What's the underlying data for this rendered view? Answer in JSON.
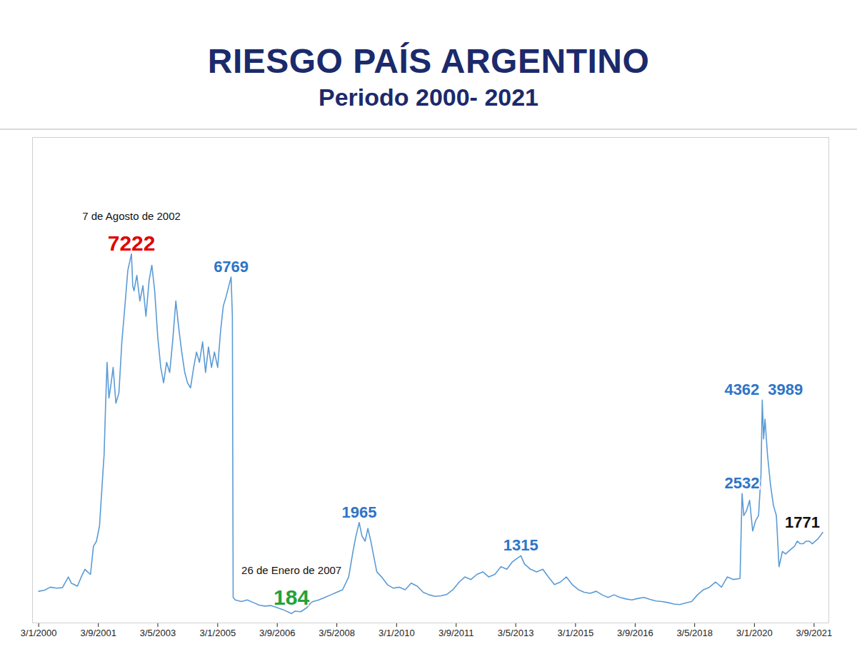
{
  "chart_data": {
    "type": "line",
    "title": "RIESGO PAÍS ARGENTINO",
    "subtitle": "Periodo 2000- 2021",
    "color": "#5b9bd5",
    "grid": false,
    "tick_labels": "x",
    "xlim": [
      "1999-11-01",
      "2022-01-31"
    ],
    "ylim": [
      0,
      9500
    ],
    "yticks": [],
    "xticks": [
      {
        "value": "2000-01-03",
        "label": "3/1/2000"
      },
      {
        "value": "2001-09-03",
        "label": "3/9/2001"
      },
      {
        "value": "2003-05-03",
        "label": "3/5/2003"
      },
      {
        "value": "2005-01-03",
        "label": "3/1/2005"
      },
      {
        "value": "2006-09-03",
        "label": "3/9/2006"
      },
      {
        "value": "2008-05-03",
        "label": "3/5/2008"
      },
      {
        "value": "2010-01-03",
        "label": "3/1/2010"
      },
      {
        "value": "2011-09-03",
        "label": "3/9/2011"
      },
      {
        "value": "2013-05-03",
        "label": "3/5/2013"
      },
      {
        "value": "2015-01-03",
        "label": "3/1/2015"
      },
      {
        "value": "2016-09-03",
        "label": "3/9/2016"
      },
      {
        "value": "2018-05-03",
        "label": "3/5/2018"
      },
      {
        "value": "2020-01-03",
        "label": "3/1/2020"
      },
      {
        "value": "2021-09-03",
        "label": "3/9/2021"
      }
    ],
    "x": [
      "2000-01-03",
      "2000-03-01",
      "2000-05-01",
      "2000-07-03",
      "2000-09-01",
      "2000-11-01",
      "2000-12-01",
      "2001-02-01",
      "2001-03-20",
      "2001-04-20",
      "2001-05-15",
      "2001-06-15",
      "2001-07-15",
      "2001-08-15",
      "2001-09-15",
      "2001-10-15",
      "2001-11-01",
      "2001-11-15",
      "2001-12-01",
      "2001-12-20",
      "2002-01-05",
      "2002-02-01",
      "2002-03-01",
      "2002-04-01",
      "2002-05-01",
      "2002-06-01",
      "2002-07-01",
      "2002-08-07",
      "2002-08-20",
      "2002-09-02",
      "2002-10-01",
      "2002-11-01",
      "2002-12-02",
      "2003-01-02",
      "2003-02-03",
      "2003-03-03",
      "2003-04-01",
      "2003-05-02",
      "2003-06-02",
      "2003-07-01",
      "2003-08-01",
      "2003-09-01",
      "2003-10-01",
      "2003-11-03",
      "2003-12-01",
      "2004-01-02",
      "2004-02-02",
      "2004-03-01",
      "2004-04-01",
      "2004-05-03",
      "2004-06-01",
      "2004-07-01",
      "2004-08-02",
      "2004-09-01",
      "2004-10-01",
      "2004-11-01",
      "2004-12-01",
      "2005-01-03",
      "2005-02-01",
      "2005-03-01",
      "2005-04-01",
      "2005-05-20",
      "2005-06-02",
      "2005-06-10",
      "2005-07-01",
      "2005-09-01",
      "2005-11-01",
      "2006-01-02",
      "2006-03-01",
      "2006-05-02",
      "2006-07-03",
      "2006-09-01",
      "2006-11-01",
      "2007-01-26",
      "2007-03-01",
      "2007-05-02",
      "2007-07-02",
      "2007-08-15",
      "2007-09-03",
      "2007-11-01",
      "2008-01-02",
      "2008-03-03",
      "2008-05-02",
      "2008-07-01",
      "2008-09-01",
      "2008-10-15",
      "2008-11-14",
      "2008-12-17",
      "2009-01-15",
      "2009-02-16",
      "2009-03-16",
      "2009-04-15",
      "2009-05-15",
      "2009-06-15",
      "2009-08-03",
      "2009-10-01",
      "2009-12-01",
      "2010-02-01",
      "2010-04-01",
      "2010-06-01",
      "2010-08-02",
      "2010-10-01",
      "2010-12-01",
      "2011-02-01",
      "2011-04-01",
      "2011-06-01",
      "2011-08-01",
      "2011-10-03",
      "2011-12-01",
      "2012-02-01",
      "2012-04-02",
      "2012-06-01",
      "2012-08-01",
      "2012-10-01",
      "2012-12-03",
      "2013-02-01",
      "2013-04-01",
      "2013-06-24",
      "2013-08-01",
      "2013-10-01",
      "2013-12-02",
      "2014-02-03",
      "2014-04-01",
      "2014-06-02",
      "2014-08-01",
      "2014-10-01",
      "2014-12-01",
      "2015-02-02",
      "2015-04-01",
      "2015-06-01",
      "2015-08-03",
      "2015-10-01",
      "2015-12-01",
      "2016-02-01",
      "2016-04-01",
      "2016-06-01",
      "2016-08-01",
      "2016-10-03",
      "2016-12-01",
      "2017-02-01",
      "2017-04-03",
      "2017-06-01",
      "2017-08-01",
      "2017-10-02",
      "2017-12-01",
      "2018-02-01",
      "2018-04-02",
      "2018-06-01",
      "2018-08-01",
      "2018-10-01",
      "2018-12-03",
      "2019-02-01",
      "2019-04-01",
      "2019-06-03",
      "2019-08-09",
      "2019-08-30",
      "2019-09-16",
      "2019-10-15",
      "2019-11-15",
      "2019-12-16",
      "2020-01-15",
      "2020-02-14",
      "2020-03-10",
      "2020-03-23",
      "2020-04-06",
      "2020-04-20",
      "2020-05-15",
      "2020-06-15",
      "2020-07-15",
      "2020-08-14",
      "2020-09-10",
      "2020-10-15",
      "2020-11-16",
      "2020-12-15",
      "2021-01-15",
      "2021-02-15",
      "2021-03-15",
      "2021-04-15",
      "2021-05-14",
      "2021-06-15",
      "2021-07-15",
      "2021-08-16",
      "2021-09-15",
      "2021-10-15",
      "2021-11-30"
    ],
    "values": [
      620,
      640,
      700,
      680,
      690,
      900,
      780,
      720,
      930,
      1050,
      1000,
      950,
      1500,
      1600,
      1900,
      2800,
      3300,
      4200,
      5100,
      4400,
      4600,
      5000,
      4300,
      4500,
      5500,
      6200,
      6900,
      7222,
      6600,
      6500,
      6800,
      6300,
      6600,
      6000,
      6700,
      7000,
      6500,
      5600,
      5000,
      4700,
      5100,
      4900,
      5500,
      6300,
      5800,
      5300,
      4900,
      4700,
      4600,
      5000,
      5300,
      5100,
      5500,
      4900,
      5400,
      5000,
      5300,
      5000,
      5700,
      6200,
      6400,
      6769,
      6000,
      500,
      450,
      420,
      450,
      400,
      350,
      330,
      340,
      300,
      260,
      184,
      230,
      220,
      300,
      400,
      420,
      450,
      500,
      550,
      600,
      650,
      900,
      1400,
      1700,
      1965,
      1700,
      1600,
      1850,
      1600,
      1300,
      1000,
      900,
      750,
      680,
      700,
      650,
      780,
      720,
      600,
      550,
      520,
      530,
      560,
      650,
      800,
      900,
      850,
      950,
      1000,
      900,
      950,
      1100,
      1050,
      1200,
      1315,
      1150,
      1050,
      1000,
      1050,
      900,
      750,
      800,
      900,
      750,
      650,
      600,
      580,
      620,
      550,
      500,
      550,
      500,
      470,
      450,
      480,
      500,
      460,
      430,
      420,
      400,
      370,
      360,
      390,
      420,
      550,
      650,
      700,
      800,
      700,
      900,
      850,
      870,
      2532,
      2100,
      2200,
      2400,
      1800,
      2000,
      2100,
      2900,
      4362,
      3600,
      3989,
      3300,
      2700,
      2300,
      2100,
      1100,
      1400,
      1350,
      1400,
      1450,
      1500,
      1600,
      1550,
      1550,
      1600,
      1600,
      1550,
      1600,
      1650,
      1771
    ],
    "annotations": [
      {
        "x": "2002-08-07",
        "value": 7222,
        "label": "7222",
        "color": "#e00000",
        "caption": "7 de Agosto de 2002"
      },
      {
        "x": "2005-05-20",
        "value": 6769,
        "label": "6769",
        "color": "#2e75c8"
      },
      {
        "x": "2007-01-26",
        "value": 184,
        "label": "184",
        "color": "#22a33a",
        "caption": "26 de Enero de 2007"
      },
      {
        "x": "2008-12-17",
        "value": 1965,
        "label": "1965",
        "color": "#2e75c8"
      },
      {
        "x": "2013-06-24",
        "value": 1315,
        "label": "1315",
        "color": "#2e75c8"
      },
      {
        "x": "2019-08-30",
        "value": 2532,
        "label": "2532",
        "color": "#2e75c8"
      },
      {
        "x": "2020-03-23",
        "value": 4362,
        "label": "4362",
        "color": "#2e75c8"
      },
      {
        "x": "2020-04-20",
        "value": 3989,
        "label": "3989",
        "color": "#2e75c8"
      },
      {
        "x": "2021-11-30",
        "value": 1771,
        "label": "1771",
        "color": "#111111"
      }
    ]
  }
}
